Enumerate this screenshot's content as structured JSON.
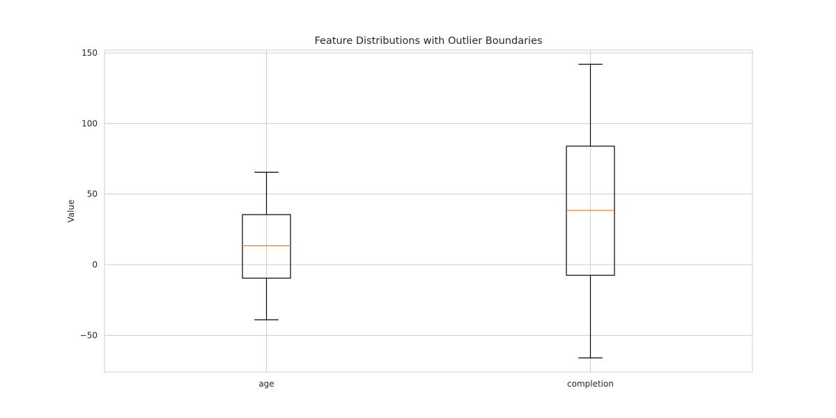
{
  "chart_data": {
    "type": "box",
    "title": "Feature Distributions with Outlier Boundaries",
    "xlabel": "",
    "ylabel": "Value",
    "ylim": [
      -76,
      152
    ],
    "yticks": [
      -50,
      0,
      50,
      100,
      150
    ],
    "ytick_labels": [
      "−50",
      "0",
      "50",
      "100",
      "150"
    ],
    "grid": true,
    "categories": [
      "age",
      "completion"
    ],
    "boxes": [
      {
        "label": "age",
        "whisker_low": -39,
        "q1": -9.5,
        "median": 13.5,
        "q3": 35.5,
        "whisker_high": 65.5
      },
      {
        "label": "completion",
        "whisker_low": -66,
        "q1": -7.5,
        "median": 38.5,
        "q3": 84,
        "whisker_high": 142
      }
    ],
    "colors": {
      "box": "#000000",
      "median": "#ff7f0e",
      "grid": "#cccccc",
      "spine": "#cccccc"
    }
  }
}
